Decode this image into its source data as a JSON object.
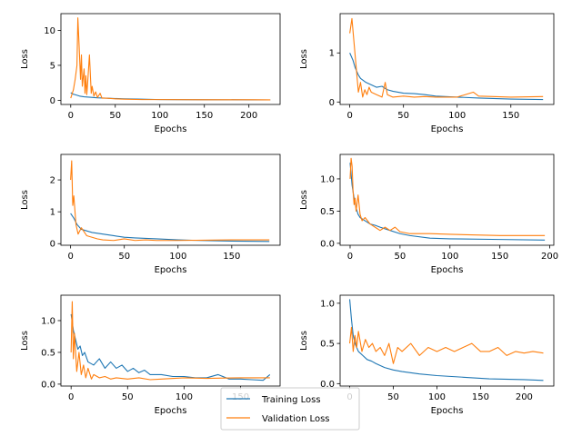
{
  "chart_data": {
    "type": "line",
    "legend": {
      "placement": "bottom-center",
      "entries": [
        {
          "name": "Training Loss",
          "color": "#1f77b4"
        },
        {
          "name": "Validation Loss",
          "color": "#ff7f0e"
        }
      ]
    },
    "subplots": [
      {
        "xlabel": "Epochs",
        "ylabel": "Loss",
        "xlim": [
          -11,
          235
        ],
        "ylim": [
          -0.6,
          12.4
        ],
        "xticks": [
          0,
          50,
          100,
          150,
          200
        ],
        "yticks": [
          0,
          5,
          10
        ],
        "series": [
          {
            "name": "Training Loss",
            "x": [
              0,
              2,
              5,
              10,
              15,
              20,
              30,
              40,
              60,
              80,
              100,
              150,
              200,
              224
            ],
            "y": [
              1.1,
              0.9,
              0.8,
              0.6,
              0.5,
              0.45,
              0.35,
              0.3,
              0.2,
              0.15,
              0.1,
              0.08,
              0.06,
              0.05
            ]
          },
          {
            "name": "Validation Loss",
            "x": [
              0,
              3,
              5,
              7,
              8,
              9,
              11,
              12,
              13,
              15,
              16,
              17,
              18,
              19,
              21,
              23,
              24,
              26,
              28,
              30,
              33,
              35,
              40,
              50,
              60,
              80,
              100,
              150,
              200,
              224
            ],
            "y": [
              0.3,
              1.5,
              3,
              5,
              11.8,
              9,
              3,
              6.5,
              2,
              4.5,
              1,
              3.5,
              0.8,
              2.5,
              6.5,
              1,
              2,
              0.6,
              1.2,
              0.4,
              1,
              0.3,
              0.3,
              0.2,
              0.15,
              0.1,
              0.1,
              0.08,
              0.07,
              0.06
            ]
          }
        ]
      },
      {
        "xlabel": "Epochs",
        "ylabel": "Loss",
        "xlim": [
          -9,
          190
        ],
        "ylim": [
          -0.05,
          1.8
        ],
        "xticks": [
          0,
          50,
          100,
          150
        ],
        "yticks": [
          0,
          1
        ],
        "series": [
          {
            "name": "Training Loss",
            "x": [
              0,
              3,
              5,
              8,
              10,
              15,
              20,
              25,
              30,
              35,
              40,
              50,
              60,
              70,
              80,
              100,
              120,
              150,
              180
            ],
            "y": [
              1.0,
              0.85,
              0.7,
              0.55,
              0.48,
              0.4,
              0.35,
              0.3,
              0.32,
              0.25,
              0.22,
              0.18,
              0.17,
              0.15,
              0.12,
              0.1,
              0.08,
              0.06,
              0.05
            ]
          },
          {
            "name": "Validation Loss",
            "x": [
              0,
              2,
              4,
              6,
              8,
              10,
              12,
              14,
              16,
              18,
              20,
              25,
              30,
              33,
              35,
              40,
              50,
              60,
              70,
              80,
              100,
              115,
              120,
              150,
              180
            ],
            "y": [
              1.4,
              1.7,
              1.2,
              0.7,
              0.2,
              0.4,
              0.1,
              0.25,
              0.15,
              0.3,
              0.2,
              0.15,
              0.1,
              0.4,
              0.15,
              0.1,
              0.12,
              0.1,
              0.11,
              0.1,
              0.1,
              0.2,
              0.12,
              0.1,
              0.11
            ]
          }
        ]
      },
      {
        "xlabel": "Epochs",
        "ylabel": "Loss",
        "xlim": [
          -9,
          195
        ],
        "ylim": [
          -0.05,
          2.8
        ],
        "xticks": [
          0,
          50,
          100,
          150
        ],
        "yticks": [
          0,
          1,
          2
        ],
        "series": [
          {
            "name": "Training Loss",
            "x": [
              0,
              3,
              6,
              10,
              15,
              20,
              30,
              40,
              50,
              60,
              80,
              100,
              120,
              150,
              185
            ],
            "y": [
              0.95,
              0.8,
              0.6,
              0.45,
              0.4,
              0.35,
              0.3,
              0.25,
              0.2,
              0.18,
              0.15,
              0.12,
              0.1,
              0.08,
              0.07
            ]
          },
          {
            "name": "Validation Loss",
            "x": [
              0,
              1,
              2,
              3,
              5,
              7,
              10,
              15,
              20,
              25,
              30,
              40,
              50,
              60,
              70,
              80,
              100,
              150,
              185
            ],
            "y": [
              2.0,
              2.6,
              1.2,
              1.5,
              0.6,
              0.3,
              0.5,
              0.25,
              0.2,
              0.15,
              0.12,
              0.1,
              0.15,
              0.1,
              0.12,
              0.1,
              0.1,
              0.12,
              0.12
            ]
          }
        ]
      },
      {
        "xlabel": "Epochs",
        "ylabel": "Loss",
        "xlim": [
          -10,
          204
        ],
        "ylim": [
          -0.03,
          1.38
        ],
        "xticks": [
          0,
          50,
          100,
          150,
          200
        ],
        "yticks": [
          0.0,
          0.5,
          1.0
        ],
        "series": [
          {
            "name": "Training Loss",
            "x": [
              0,
              2,
              4,
              6,
              8,
              10,
              15,
              20,
              25,
              30,
              40,
              50,
              60,
              80,
              100,
              150,
              195
            ],
            "y": [
              1.25,
              0.9,
              0.7,
              0.55,
              0.45,
              0.4,
              0.35,
              0.3,
              0.28,
              0.25,
              0.2,
              0.15,
              0.12,
              0.08,
              0.07,
              0.06,
              0.05
            ]
          },
          {
            "name": "Validation Loss",
            "x": [
              0,
              1,
              2,
              3,
              4,
              5,
              6,
              8,
              10,
              12,
              15,
              20,
              25,
              30,
              35,
              40,
              45,
              50,
              60,
              80,
              100,
              150,
              195
            ],
            "y": [
              1.0,
              1.32,
              1.2,
              0.8,
              0.6,
              0.7,
              0.5,
              0.75,
              0.45,
              0.35,
              0.4,
              0.3,
              0.25,
              0.2,
              0.25,
              0.2,
              0.25,
              0.18,
              0.15,
              0.15,
              0.14,
              0.12,
              0.12
            ]
          }
        ]
      },
      {
        "xlabel": "Epochs",
        "ylabel": "Loss",
        "xlim": [
          -9,
          185
        ],
        "ylim": [
          -0.03,
          1.4
        ],
        "xticks": [
          0,
          50,
          100,
          150
        ],
        "yticks": [
          0.0,
          0.5,
          1.0
        ],
        "series": [
          {
            "name": "Training Loss",
            "x": [
              0,
              2,
              4,
              6,
              8,
              10,
              12,
              15,
              20,
              25,
              30,
              35,
              40,
              45,
              50,
              55,
              60,
              65,
              70,
              80,
              90,
              100,
              110,
              120,
              130,
              140,
              150,
              160,
              170,
              176
            ],
            "y": [
              1.1,
              0.85,
              0.7,
              0.55,
              0.6,
              0.45,
              0.5,
              0.35,
              0.3,
              0.4,
              0.25,
              0.35,
              0.25,
              0.3,
              0.2,
              0.25,
              0.18,
              0.22,
              0.15,
              0.15,
              0.12,
              0.12,
              0.1,
              0.1,
              0.15,
              0.08,
              0.08,
              0.07,
              0.06,
              0.15
            ]
          },
          {
            "name": "Validation Loss",
            "x": [
              0,
              1,
              2,
              3,
              5,
              7,
              9,
              11,
              13,
              15,
              18,
              20,
              25,
              30,
              35,
              40,
              50,
              60,
              70,
              80,
              100,
              120,
              150,
              176
            ],
            "y": [
              0.5,
              1.3,
              0.4,
              0.8,
              0.2,
              0.5,
              0.15,
              0.3,
              0.1,
              0.25,
              0.08,
              0.15,
              0.1,
              0.12,
              0.08,
              0.1,
              0.08,
              0.1,
              0.07,
              0.08,
              0.1,
              0.09,
              0.1,
              0.1
            ]
          }
        ]
      },
      {
        "xlabel": "Epochs",
        "ylabel": "Loss",
        "xlim": [
          -11,
          234
        ],
        "ylim": [
          -0.03,
          1.1
        ],
        "xticks": [
          0,
          50,
          100,
          150,
          200
        ],
        "yticks": [
          0.0,
          0.5,
          1.0
        ],
        "series": [
          {
            "name": "Training Loss",
            "x": [
              0,
              2,
              4,
              6,
              8,
              10,
              15,
              20,
              25,
              30,
              40,
              50,
              60,
              80,
              100,
              130,
              160,
              200,
              222
            ],
            "y": [
              1.05,
              0.8,
              0.6,
              0.5,
              0.45,
              0.4,
              0.35,
              0.3,
              0.28,
              0.25,
              0.2,
              0.17,
              0.15,
              0.12,
              0.1,
              0.08,
              0.06,
              0.05,
              0.04
            ]
          },
          {
            "name": "Validation Loss",
            "x": [
              0,
              2,
              4,
              6,
              8,
              10,
              14,
              18,
              22,
              26,
              30,
              35,
              40,
              45,
              50,
              55,
              60,
              70,
              80,
              90,
              100,
              110,
              120,
              130,
              140,
              150,
              160,
              170,
              180,
              190,
              200,
              210,
              222
            ],
            "y": [
              0.5,
              0.7,
              0.4,
              0.6,
              0.45,
              0.65,
              0.4,
              0.55,
              0.45,
              0.5,
              0.4,
              0.45,
              0.35,
              0.5,
              0.25,
              0.45,
              0.4,
              0.5,
              0.35,
              0.45,
              0.4,
              0.45,
              0.4,
              0.45,
              0.5,
              0.4,
              0.4,
              0.45,
              0.35,
              0.4,
              0.38,
              0.4,
              0.38
            ]
          }
        ]
      }
    ]
  }
}
